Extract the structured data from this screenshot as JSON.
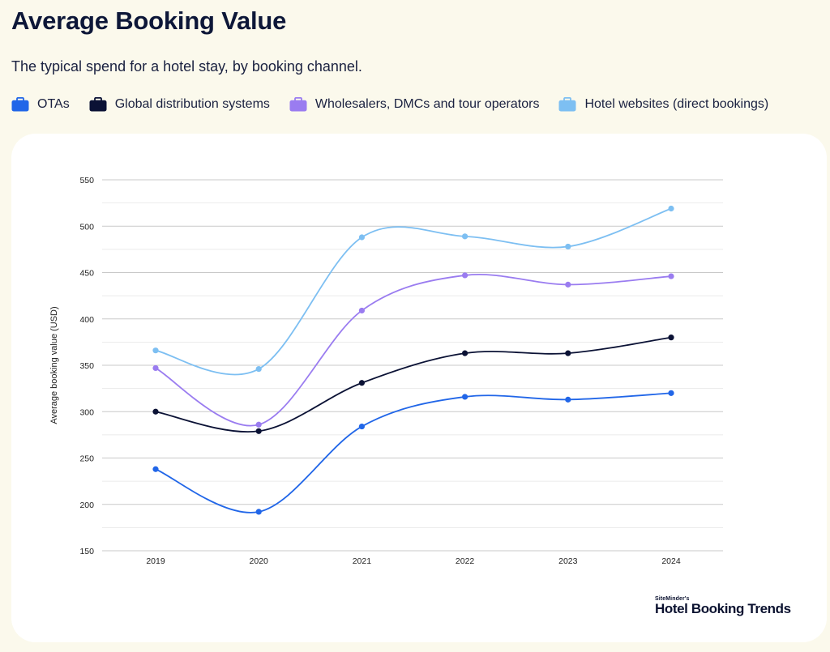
{
  "header": {
    "title": "Average Booking Value",
    "subtitle": "The typical spend for a hotel stay, by booking channel."
  },
  "legend": [
    {
      "label": "OTAs",
      "color": "#2166e8",
      "icon": "suitcase-icon"
    },
    {
      "label": "Global distribution systems",
      "color": "#0b1235",
      "icon": "suitcase-icon"
    },
    {
      "label": "Wholesalers, DMCs and tour operators",
      "color": "#9a7cf0",
      "icon": "suitcase-icon"
    },
    {
      "label": "Hotel websites (direct bookings)",
      "color": "#7dbff2",
      "icon": "suitcase-icon"
    }
  ],
  "branding": {
    "small": "SiteMinder's",
    "main": "Hotel Booking Trends"
  },
  "chart_data": {
    "type": "line",
    "title": "Average Booking Value",
    "subtitle": "The typical spend for a hotel stay, by booking channel.",
    "xlabel": "",
    "ylabel": "Average booking value (USD)",
    "categories": [
      "2019",
      "2020",
      "2021",
      "2022",
      "2023",
      "2024"
    ],
    "ylim": [
      150,
      550
    ],
    "yticks": [
      150,
      200,
      250,
      300,
      350,
      400,
      450,
      500,
      550
    ],
    "grid": true,
    "legend_position": "top",
    "series": [
      {
        "name": "OTAs",
        "color": "#2166e8",
        "values": [
          238,
          192,
          284,
          316,
          313,
          320
        ]
      },
      {
        "name": "Global distribution systems",
        "color": "#0b1235",
        "values": [
          300,
          279,
          331,
          363,
          363,
          380
        ]
      },
      {
        "name": "Wholesalers, DMCs and tour operators",
        "color": "#9a7cf0",
        "values": [
          347,
          286,
          409,
          447,
          437,
          446
        ]
      },
      {
        "name": "Hotel websites (direct bookings)",
        "color": "#7dbff2",
        "values": [
          366,
          346,
          488,
          489,
          478,
          519
        ]
      }
    ]
  }
}
